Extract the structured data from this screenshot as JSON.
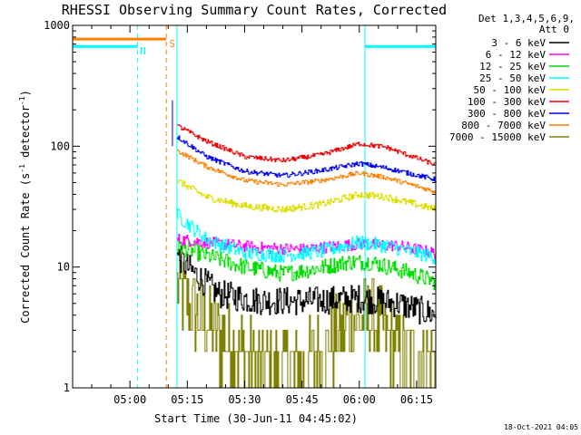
{
  "chart_data": {
    "type": "line",
    "title": "RHESSI Observing Summary Count Rates, Corrected",
    "xlabel": "Start Time (30-Jun-11 04:45:02)",
    "ylabel_main": "Corrected Count Rate (s",
    "ylabel_sup1": "-1",
    "ylabel_mid": " detector",
    "ylabel_sup2": "-1",
    "ylabel_end": ")",
    "yscale": "log",
    "ylim": [
      1,
      1000
    ],
    "yticks": [
      {
        "value": 1,
        "label": "1"
      },
      {
        "value": 10,
        "label": "10"
      },
      {
        "value": 100,
        "label": "100"
      },
      {
        "value": 1000,
        "label": "1000"
      }
    ],
    "xlim_minutes": [
      0,
      95
    ],
    "xticks": [
      {
        "minutes": 15,
        "label": "05:00"
      },
      {
        "minutes": 30,
        "label": "05:15"
      },
      {
        "minutes": 45,
        "label": "05:30"
      },
      {
        "minutes": 60,
        "label": "05:45"
      },
      {
        "minutes": 75,
        "label": "06:00"
      },
      {
        "minutes": 90,
        "label": "06:15"
      }
    ],
    "legend_header": [
      "Det 1,3,4,5,6,9,",
      "Att 0"
    ],
    "data_start_minutes": 27.3,
    "data_end_minutes": 95,
    "series": [
      {
        "name": "3 - 6 keV",
        "color": "#000000",
        "profile": [
          [
            27.3,
            12.5
          ],
          [
            30,
            10
          ],
          [
            38,
            6
          ],
          [
            48,
            5.3
          ],
          [
            60,
            5.2
          ],
          [
            75,
            5.5
          ],
          [
            85,
            5
          ],
          [
            95,
            4
          ]
        ],
        "noise": 0.12
      },
      {
        "name": "6 - 12 keV",
        "color": "#ff00ff",
        "profile": [
          [
            27.3,
            17
          ],
          [
            35,
            16
          ],
          [
            48,
            14.5
          ],
          [
            60,
            14
          ],
          [
            75,
            15.5
          ],
          [
            85,
            15
          ],
          [
            95,
            13
          ]
        ],
        "noise": 0.05
      },
      {
        "name": "12 - 25 keV",
        "color": "#00dd00",
        "profile": [
          [
            27.3,
            15
          ],
          [
            33,
            13
          ],
          [
            45,
            10
          ],
          [
            55,
            8.8
          ],
          [
            62,
            9.5
          ],
          [
            72,
            11
          ],
          [
            78,
            11
          ],
          [
            88,
            9
          ],
          [
            95,
            7.5
          ]
        ],
        "noise": 0.07
      },
      {
        "name": "25 - 50 keV",
        "color": "#00ffff",
        "profile": [
          [
            27.3,
            27
          ],
          [
            30,
            23
          ],
          [
            35,
            17
          ],
          [
            45,
            13
          ],
          [
            55,
            12.5
          ],
          [
            65,
            13.5
          ],
          [
            75,
            16
          ],
          [
            82,
            15
          ],
          [
            95,
            12
          ]
        ],
        "noise": 0.06
      },
      {
        "name": "50 - 100 keV",
        "color": "#dddd00",
        "profile": [
          [
            27.3,
            52
          ],
          [
            35,
            38
          ],
          [
            45,
            32
          ],
          [
            55,
            30
          ],
          [
            65,
            33
          ],
          [
            75,
            40
          ],
          [
            82,
            38
          ],
          [
            95,
            30
          ]
        ],
        "noise": 0.03
      },
      {
        "name": "100 - 300 keV",
        "color": "#ee0000",
        "profile": [
          [
            27.3,
            148
          ],
          [
            35,
            110
          ],
          [
            45,
            82
          ],
          [
            55,
            76
          ],
          [
            65,
            85
          ],
          [
            75,
            105
          ],
          [
            82,
            98
          ],
          [
            95,
            70
          ]
        ],
        "noise": 0.02
      },
      {
        "name": "300 - 800 keV",
        "color": "#0000ee",
        "profile": [
          [
            27.3,
            120
          ],
          [
            35,
            82
          ],
          [
            45,
            62
          ],
          [
            55,
            57
          ],
          [
            65,
            63
          ],
          [
            75,
            72
          ],
          [
            82,
            66
          ],
          [
            95,
            53
          ]
        ],
        "noise": 0.02
      },
      {
        "name": "800 - 7000 keV",
        "color": "#ff8000",
        "profile": [
          [
            27.3,
            92
          ],
          [
            35,
            68
          ],
          [
            45,
            52
          ],
          [
            55,
            48
          ],
          [
            65,
            52
          ],
          [
            75,
            60
          ],
          [
            82,
            55
          ],
          [
            95,
            42
          ]
        ],
        "noise": 0.02
      },
      {
        "name": "7000 - 15000 keV",
        "color": "#808000",
        "profile": [
          [
            27.3,
            7
          ],
          [
            30,
            5
          ],
          [
            35,
            3.5
          ],
          [
            40,
            2.5
          ],
          [
            50,
            1.5
          ],
          [
            60,
            1.5
          ],
          [
            68,
            2.5
          ],
          [
            72,
            3.5
          ],
          [
            78,
            4
          ],
          [
            85,
            2
          ],
          [
            95,
            1.7
          ]
        ],
        "noise": 0.35
      }
    ],
    "flag_bars": [
      {
        "label": "S",
        "color": "#ff8000",
        "segments": [
          [
            0,
            24.5
          ]
        ],
        "level": 770,
        "label_at_minutes": 25.3
      },
      {
        "label": "N",
        "color": "#00ffff",
        "segments": [
          [
            0,
            17
          ],
          [
            76.5,
            95
          ]
        ],
        "level": 670,
        "label_at_minutes": 17.6
      }
    ],
    "vertical_lines": [
      {
        "minutes": 17,
        "color": "#00ffff",
        "style": "dashed"
      },
      {
        "minutes": 24.5,
        "color": "#ff8000",
        "style": "dashed"
      },
      {
        "minutes": 27.3,
        "color": "#00ffff",
        "style": "solid"
      },
      {
        "minutes": 76.5,
        "color": "#00ffff",
        "style": "solid"
      },
      {
        "minutes": 95,
        "color": "#00ffff",
        "style": "dashed"
      },
      {
        "minutes": 0,
        "color": "#00ffff",
        "style": "solid"
      }
    ],
    "footer_date": "18-Oct-2021 04:05"
  }
}
